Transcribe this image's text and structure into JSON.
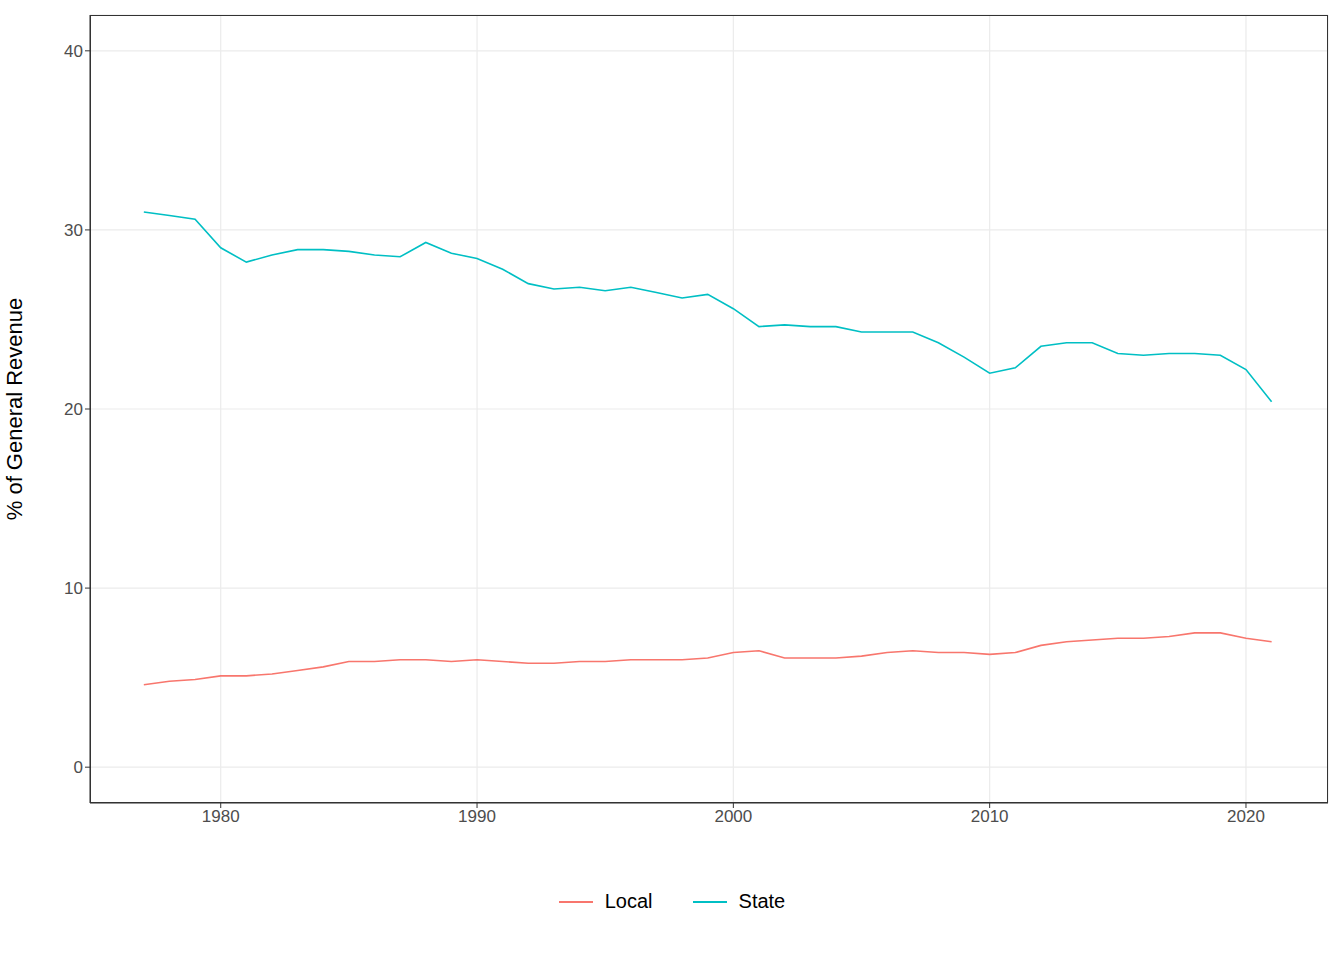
{
  "chart_data": {
    "type": "line",
    "y_label": "% of General Revenue",
    "x": [
      1977,
      1978,
      1979,
      1980,
      1981,
      1982,
      1983,
      1984,
      1985,
      1986,
      1987,
      1988,
      1989,
      1990,
      1991,
      1992,
      1993,
      1994,
      1995,
      1996,
      1997,
      1998,
      1999,
      2000,
      2001,
      2002,
      2003,
      2004,
      2005,
      2006,
      2007,
      2008,
      2009,
      2010,
      2011,
      2012,
      2013,
      2014,
      2015,
      2016,
      2017,
      2018,
      2019,
      2020,
      2021
    ],
    "series": [
      {
        "name": "Local",
        "color": "#F8766D",
        "values": [
          4.6,
          4.8,
          4.9,
          5.1,
          5.1,
          5.2,
          5.4,
          5.6,
          5.9,
          5.9,
          6.0,
          6.0,
          5.9,
          6.0,
          5.9,
          5.8,
          5.8,
          5.9,
          5.9,
          6.0,
          6.0,
          6.0,
          6.1,
          6.4,
          6.5,
          6.1,
          6.1,
          6.1,
          6.2,
          6.4,
          6.5,
          6.4,
          6.4,
          6.3,
          6.4,
          6.8,
          7.0,
          7.1,
          7.2,
          7.2,
          7.3,
          7.5,
          7.5,
          7.2,
          7.0
        ]
      },
      {
        "name": "State",
        "color": "#00BFC4",
        "values": [
          31.0,
          30.8,
          30.6,
          29.0,
          28.2,
          28.6,
          28.9,
          28.9,
          28.8,
          28.6,
          28.5,
          29.3,
          28.7,
          28.4,
          27.8,
          27.0,
          26.7,
          26.8,
          26.6,
          26.8,
          26.5,
          26.2,
          26.4,
          25.6,
          24.6,
          24.7,
          24.6,
          24.6,
          24.3,
          24.3,
          24.3,
          23.7,
          22.9,
          22.0,
          22.3,
          23.5,
          23.7,
          23.7,
          23.1,
          23.0,
          23.1,
          23.1,
          23.0,
          22.2,
          20.4
        ]
      }
    ],
    "xlim": [
      1974.9,
      2023.2
    ],
    "ylim": [
      -2,
      42
    ],
    "xticks": [
      1980,
      1990,
      2000,
      2010,
      2020
    ],
    "yticks": [
      0,
      10,
      20,
      30,
      40
    ],
    "grid": true,
    "legend": "bottom"
  }
}
